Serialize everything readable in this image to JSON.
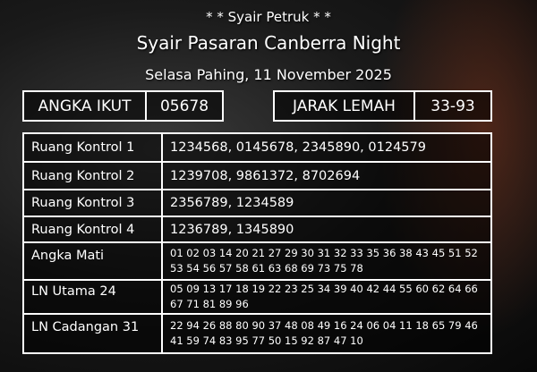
{
  "header": {
    "subtitle": "* * Syair Petruk * *",
    "title": "Syair Pasaran Canberra Night",
    "date": "Selasa Pahing, 11 November 2025"
  },
  "angka_ikut": {
    "label": "ANGKA IKUT",
    "value": "05678"
  },
  "jarak_lemah": {
    "label": "JARAK LEMAH",
    "value": "33-93"
  },
  "rows": [
    {
      "label": "Ruang Kontrol 1",
      "value": "1234568, 0145678, 2345890, 0124579"
    },
    {
      "label": "Ruang Kontrol 2",
      "value": "1239708, 9861372, 8702694"
    },
    {
      "label": "Ruang Kontrol 3",
      "value": "2356789, 1234589"
    },
    {
      "label": "Ruang Kontrol 4",
      "value": "1236789, 1345890"
    },
    {
      "label": "Angka Mati",
      "value": "01 02 03 14 20 21 27 29 30 31 32 33 35 36 38 43 45 51 52 53 54 56 57 58 61 63 68 69 73 75 78"
    },
    {
      "label": "LN Utama 24",
      "value": "05 09 13 17 18 19 22 23 25 34 39 40 42 44 55 60 62 64 66 67 71 81 89 96"
    },
    {
      "label": "LN Cadangan 31",
      "value": "22 94 26 88 80 90 37 48 08 49 16 24 06 04 11 18 65 79 46 41 59 74 83 95 77 50 15 92 87 47 10"
    }
  ]
}
